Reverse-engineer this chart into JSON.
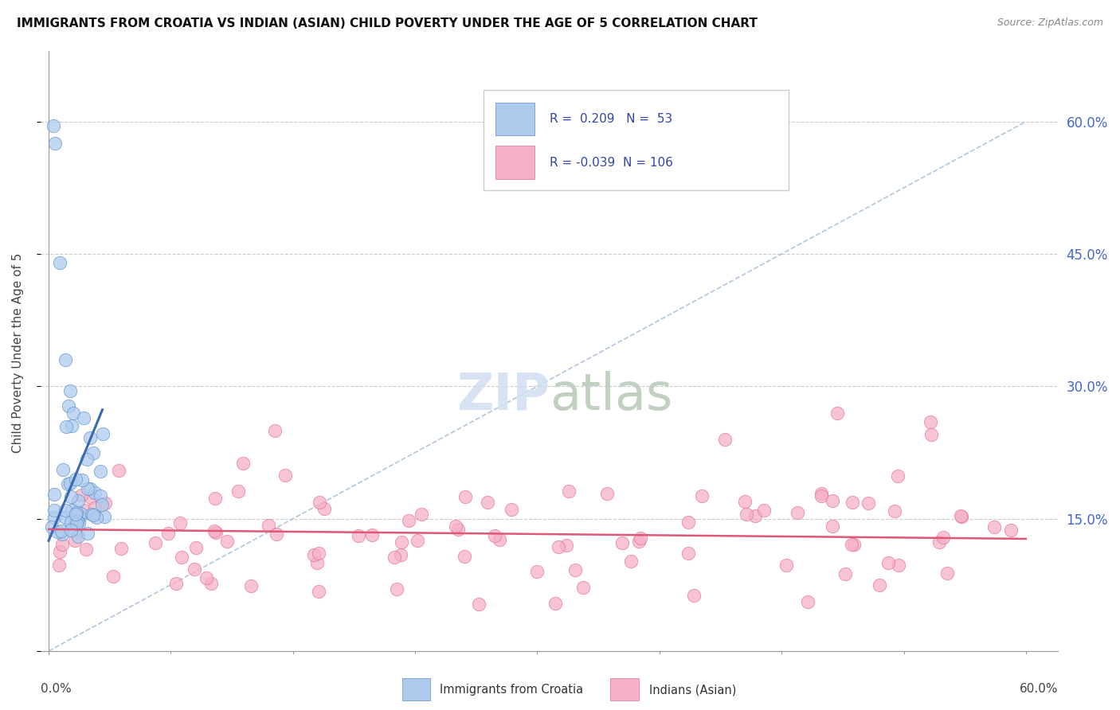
{
  "title": "IMMIGRANTS FROM CROATIA VS INDIAN (ASIAN) CHILD POVERTY UNDER THE AGE OF 5 CORRELATION CHART",
  "source": "Source: ZipAtlas.com",
  "ylabel": "Child Poverty Under the Age of 5",
  "ytick_vals": [
    0.0,
    0.15,
    0.3,
    0.45,
    0.6
  ],
  "ytick_labels": [
    "",
    "15.0%",
    "30.0%",
    "45.0%",
    "60.0%"
  ],
  "xlim": [
    0.0,
    0.6
  ],
  "ylim": [
    0.0,
    0.65
  ],
  "legend_r1": "R =  0.209",
  "legend_n1": "N =  53",
  "legend_r2": "R = -0.039",
  "legend_n2": "N = 106",
  "color_croatia": "#aecbee",
  "color_india": "#f5afc8",
  "color_croatia_edge": "#5b8fc9",
  "color_india_edge": "#e07090",
  "color_croatia_line": "#3a6aaf",
  "color_india_line": "#e05878",
  "color_diag": "#9bb8d8",
  "legend_label1": "Immigrants from Croatia",
  "legend_label2": "Indians (Asian)",
  "legend_color": "#3344aa",
  "watermark_zip": "ZIP",
  "watermark_atlas": "atlas"
}
